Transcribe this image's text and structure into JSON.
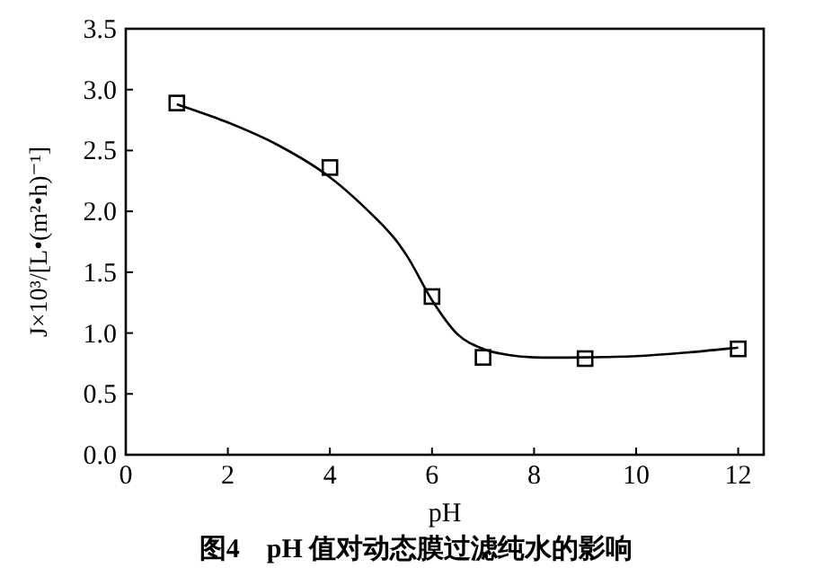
{
  "chart_data": {
    "type": "scatter",
    "title": "图4　pH 值对动态膜过滤纯水的影响",
    "xlabel": "pH",
    "ylabel": "J×10³/[L•(m²•h)⁻¹]",
    "xlim": [
      0,
      12.5
    ],
    "xticks": [
      0,
      2,
      4,
      6,
      8,
      10,
      12
    ],
    "ylim": [
      0,
      3.5
    ],
    "yticks": [
      {
        "value": 0,
        "label": "0.0"
      },
      {
        "value": 0.5,
        "label": "0.5"
      },
      {
        "value": 1,
        "label": "1.0"
      },
      {
        "value": 1.5,
        "label": "1.5"
      },
      {
        "value": 2,
        "label": "2.0"
      },
      {
        "value": 2.5,
        "label": "2.5"
      },
      {
        "value": 3,
        "label": "3.0"
      },
      {
        "value": 3.5,
        "label": "3.5"
      }
    ],
    "grid": false,
    "series": [
      {
        "marker": "square",
        "color": "#000000",
        "x": [
          1,
          4,
          6,
          7,
          9,
          12
        ],
        "values": [
          2.89,
          2.36,
          1.3,
          0.8,
          0.79,
          0.87
        ]
      },
      {
        "type": "line",
        "marker": "none",
        "line_style": "solid",
        "color": "#000000",
        "x": [
          1,
          2,
          3,
          4,
          5,
          5.5,
          6,
          6.5,
          7,
          7.5,
          8,
          9,
          10,
          11,
          12
        ],
        "values": [
          2.88,
          2.73,
          2.54,
          2.28,
          1.9,
          1.64,
          1.27,
          0.99,
          0.87,
          0.82,
          0.8,
          0.8,
          0.81,
          0.84,
          0.88
        ]
      }
    ]
  }
}
